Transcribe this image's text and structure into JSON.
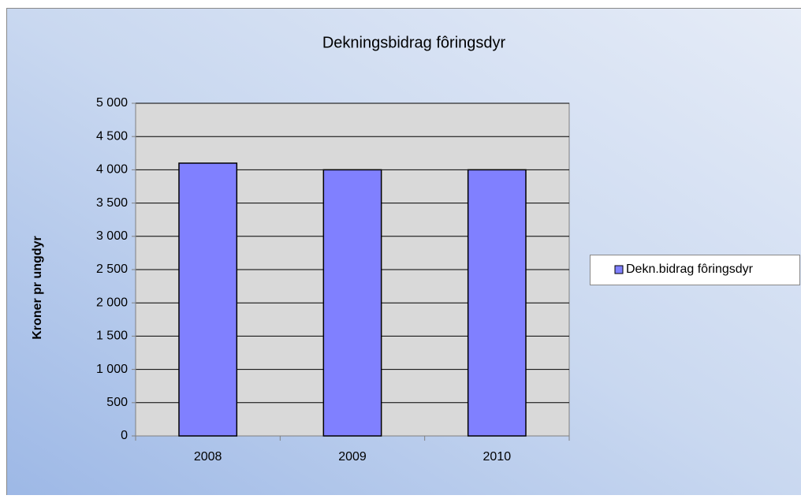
{
  "chart_data": {
    "type": "bar",
    "title": "Dekningsbidrag fôringsdyr",
    "y_label": "Kroner pr ungdyr",
    "categories": [
      "2008",
      "2009",
      "2010"
    ],
    "series": [
      {
        "name": "Dekn.bidrag fôringsdyr",
        "color": "#8080ff",
        "values": [
          4100,
          4000,
          4000
        ]
      }
    ],
    "ylim": [
      0,
      5000
    ],
    "yticks": [
      0,
      500,
      {
        "value": 1000,
        "label": "1 000"
      },
      {
        "value": 1500,
        "label": "1 500"
      },
      {
        "value": 2000,
        "label": "2 000"
      },
      {
        "value": 2500,
        "label": "2 500"
      },
      {
        "value": 3000,
        "label": "3 000"
      },
      {
        "value": 3500,
        "label": "3 500"
      },
      {
        "value": 4000,
        "label": "4 000"
      },
      {
        "value": 4500,
        "label": "4 500"
      },
      {
        "value": 5000,
        "label": "5 000"
      }
    ],
    "grid": true,
    "legend": "right"
  }
}
